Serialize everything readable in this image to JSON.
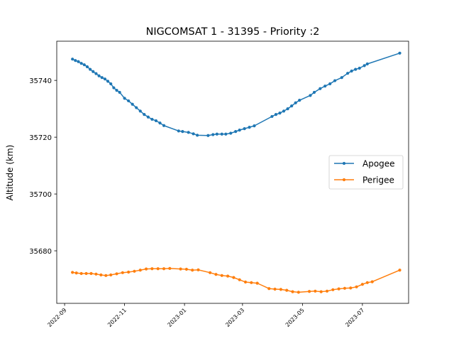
{
  "chart_data": {
    "type": "line",
    "title": "NIGCOMSAT 1 - 31395 - Priority :2",
    "xlabel": "",
    "ylabel": "Altitude (km)",
    "x_tick_labels": [
      "2022-09",
      "2022-11",
      "2023-01",
      "2023-03",
      "2023-05",
      "2023-07"
    ],
    "x_tick_dates": [
      "2022-09-01",
      "2022-11-01",
      "2023-01-01",
      "2023-03-01",
      "2023-05-01",
      "2023-07-01"
    ],
    "xlim": [
      "2022-08-24",
      "2023-08-17"
    ],
    "y_ticks": [
      35680,
      35700,
      35720,
      35740
    ],
    "ylim": [
      35661.5,
      35753.8
    ],
    "grid": false,
    "legend_position": "center-right",
    "series": [
      {
        "name": "Apogee",
        "color": "#1f77b4",
        "points": [
          [
            "2022-09-09",
            35747.5
          ],
          [
            "2022-09-12",
            35747
          ],
          [
            "2022-09-15",
            35746.6
          ],
          [
            "2022-09-18",
            35746
          ],
          [
            "2022-09-21",
            35745.5
          ],
          [
            "2022-09-24",
            35744.8
          ],
          [
            "2022-09-27",
            35743.9
          ],
          [
            "2022-09-30",
            35743.1
          ],
          [
            "2022-10-03",
            35742.4
          ],
          [
            "2022-10-06",
            35741.6
          ],
          [
            "2022-10-09",
            35741.0
          ],
          [
            "2022-10-12",
            35740.5
          ],
          [
            "2022-10-15",
            35739.7
          ],
          [
            "2022-10-18",
            35738.8
          ],
          [
            "2022-10-21",
            35737.4
          ],
          [
            "2022-10-24",
            35736.5
          ],
          [
            "2022-10-27",
            35735.8
          ],
          [
            "2022-11-01",
            35733.7
          ],
          [
            "2022-11-05",
            35732.8
          ],
          [
            "2022-11-09",
            35731.6
          ],
          [
            "2022-11-13",
            35730.4
          ],
          [
            "2022-11-17",
            35729.2
          ],
          [
            "2022-11-21",
            35728.0
          ],
          [
            "2022-11-25",
            35727.1
          ],
          [
            "2022-11-29",
            35726.3
          ],
          [
            "2022-12-03",
            35725.8
          ],
          [
            "2022-12-07",
            35725.0
          ],
          [
            "2022-12-11",
            35724.1
          ],
          [
            "2022-12-26",
            35722.2
          ],
          [
            "2022-12-30",
            35722.0
          ],
          [
            "2023-01-05",
            35721.7
          ],
          [
            "2023-01-10",
            35721.2
          ],
          [
            "2023-01-14",
            35720.7
          ],
          [
            "2023-01-25",
            35720.6
          ],
          [
            "2023-01-30",
            35720.9
          ],
          [
            "2023-02-03",
            35721.1
          ],
          [
            "2023-02-08",
            35721.1
          ],
          [
            "2023-02-12",
            35721.1
          ],
          [
            "2023-02-17",
            35721.4
          ],
          [
            "2023-02-22",
            35722.0
          ],
          [
            "2023-02-26",
            35722.5
          ],
          [
            "2023-03-03",
            35723.0
          ],
          [
            "2023-03-08",
            35723.5
          ],
          [
            "2023-03-13",
            35724.0
          ],
          [
            "2023-03-31",
            35727.3
          ],
          [
            "2023-04-04",
            35728.0
          ],
          [
            "2023-04-08",
            35728.5
          ],
          [
            "2023-04-12",
            35729.2
          ],
          [
            "2023-04-16",
            35730.0
          ],
          [
            "2023-04-20",
            35731.0
          ],
          [
            "2023-04-24",
            35732.1
          ],
          [
            "2023-04-28",
            35733.0
          ],
          [
            "2023-05-09",
            35734.7
          ],
          [
            "2023-05-13",
            35735.8
          ],
          [
            "2023-05-19",
            35737.1
          ],
          [
            "2023-05-24",
            35738.0
          ],
          [
            "2023-05-29",
            35738.8
          ],
          [
            "2023-06-03",
            35739.9
          ],
          [
            "2023-06-10",
            35741.0
          ],
          [
            "2023-06-16",
            35742.5
          ],
          [
            "2023-06-20",
            35743.3
          ],
          [
            "2023-06-24",
            35743.9
          ],
          [
            "2023-06-28",
            35744.3
          ],
          [
            "2023-07-03",
            35745.2
          ],
          [
            "2023-07-06",
            35745.8
          ],
          [
            "2023-08-08",
            35749.6
          ]
        ]
      },
      {
        "name": "Perigee",
        "color": "#ff7f0e",
        "points": [
          [
            "2022-09-09",
            35672.4
          ],
          [
            "2022-09-13",
            35672.2
          ],
          [
            "2022-09-18",
            35672.0
          ],
          [
            "2022-09-23",
            35672.0
          ],
          [
            "2022-09-28",
            35672.0
          ],
          [
            "2022-10-03",
            35671.8
          ],
          [
            "2022-10-08",
            35671.5
          ],
          [
            "2022-10-13",
            35671.3
          ],
          [
            "2022-10-18",
            35671.5
          ],
          [
            "2022-10-24",
            35671.9
          ],
          [
            "2022-10-30",
            35672.3
          ],
          [
            "2022-11-05",
            35672.5
          ],
          [
            "2022-11-11",
            35672.8
          ],
          [
            "2022-11-17",
            35673.2
          ],
          [
            "2022-11-23",
            35673.6
          ],
          [
            "2022-11-29",
            35673.7
          ],
          [
            "2022-12-05",
            35673.7
          ],
          [
            "2022-12-11",
            35673.7
          ],
          [
            "2022-12-17",
            35673.8
          ],
          [
            "2022-12-28",
            35673.6
          ],
          [
            "2023-01-03",
            35673.5
          ],
          [
            "2023-01-09",
            35673.2
          ],
          [
            "2023-01-15",
            35673.3
          ],
          [
            "2023-01-27",
            35672.3
          ],
          [
            "2023-02-02",
            35671.7
          ],
          [
            "2023-02-08",
            35671.3
          ],
          [
            "2023-02-14",
            35671.1
          ],
          [
            "2023-02-20",
            35670.6
          ],
          [
            "2023-02-26",
            35669.8
          ],
          [
            "2023-03-04",
            35669.0
          ],
          [
            "2023-03-10",
            35668.8
          ],
          [
            "2023-03-16",
            35668.6
          ],
          [
            "2023-03-28",
            35666.7
          ],
          [
            "2023-04-03",
            35666.5
          ],
          [
            "2023-04-09",
            35666.4
          ],
          [
            "2023-04-15",
            35666.1
          ],
          [
            "2023-04-21",
            35665.6
          ],
          [
            "2023-04-27",
            35665.4
          ],
          [
            "2023-05-08",
            35665.7
          ],
          [
            "2023-05-14",
            35665.8
          ],
          [
            "2023-05-20",
            35665.6
          ],
          [
            "2023-05-26",
            35665.8
          ],
          [
            "2023-06-01",
            35666.3
          ],
          [
            "2023-06-07",
            35666.6
          ],
          [
            "2023-06-13",
            35666.8
          ],
          [
            "2023-06-19",
            35666.9
          ],
          [
            "2023-06-25",
            35667.3
          ],
          [
            "2023-07-01",
            35668.2
          ],
          [
            "2023-07-06",
            35668.8
          ],
          [
            "2023-07-11",
            35669.1
          ],
          [
            "2023-08-08",
            35673.2
          ]
        ]
      }
    ]
  }
}
